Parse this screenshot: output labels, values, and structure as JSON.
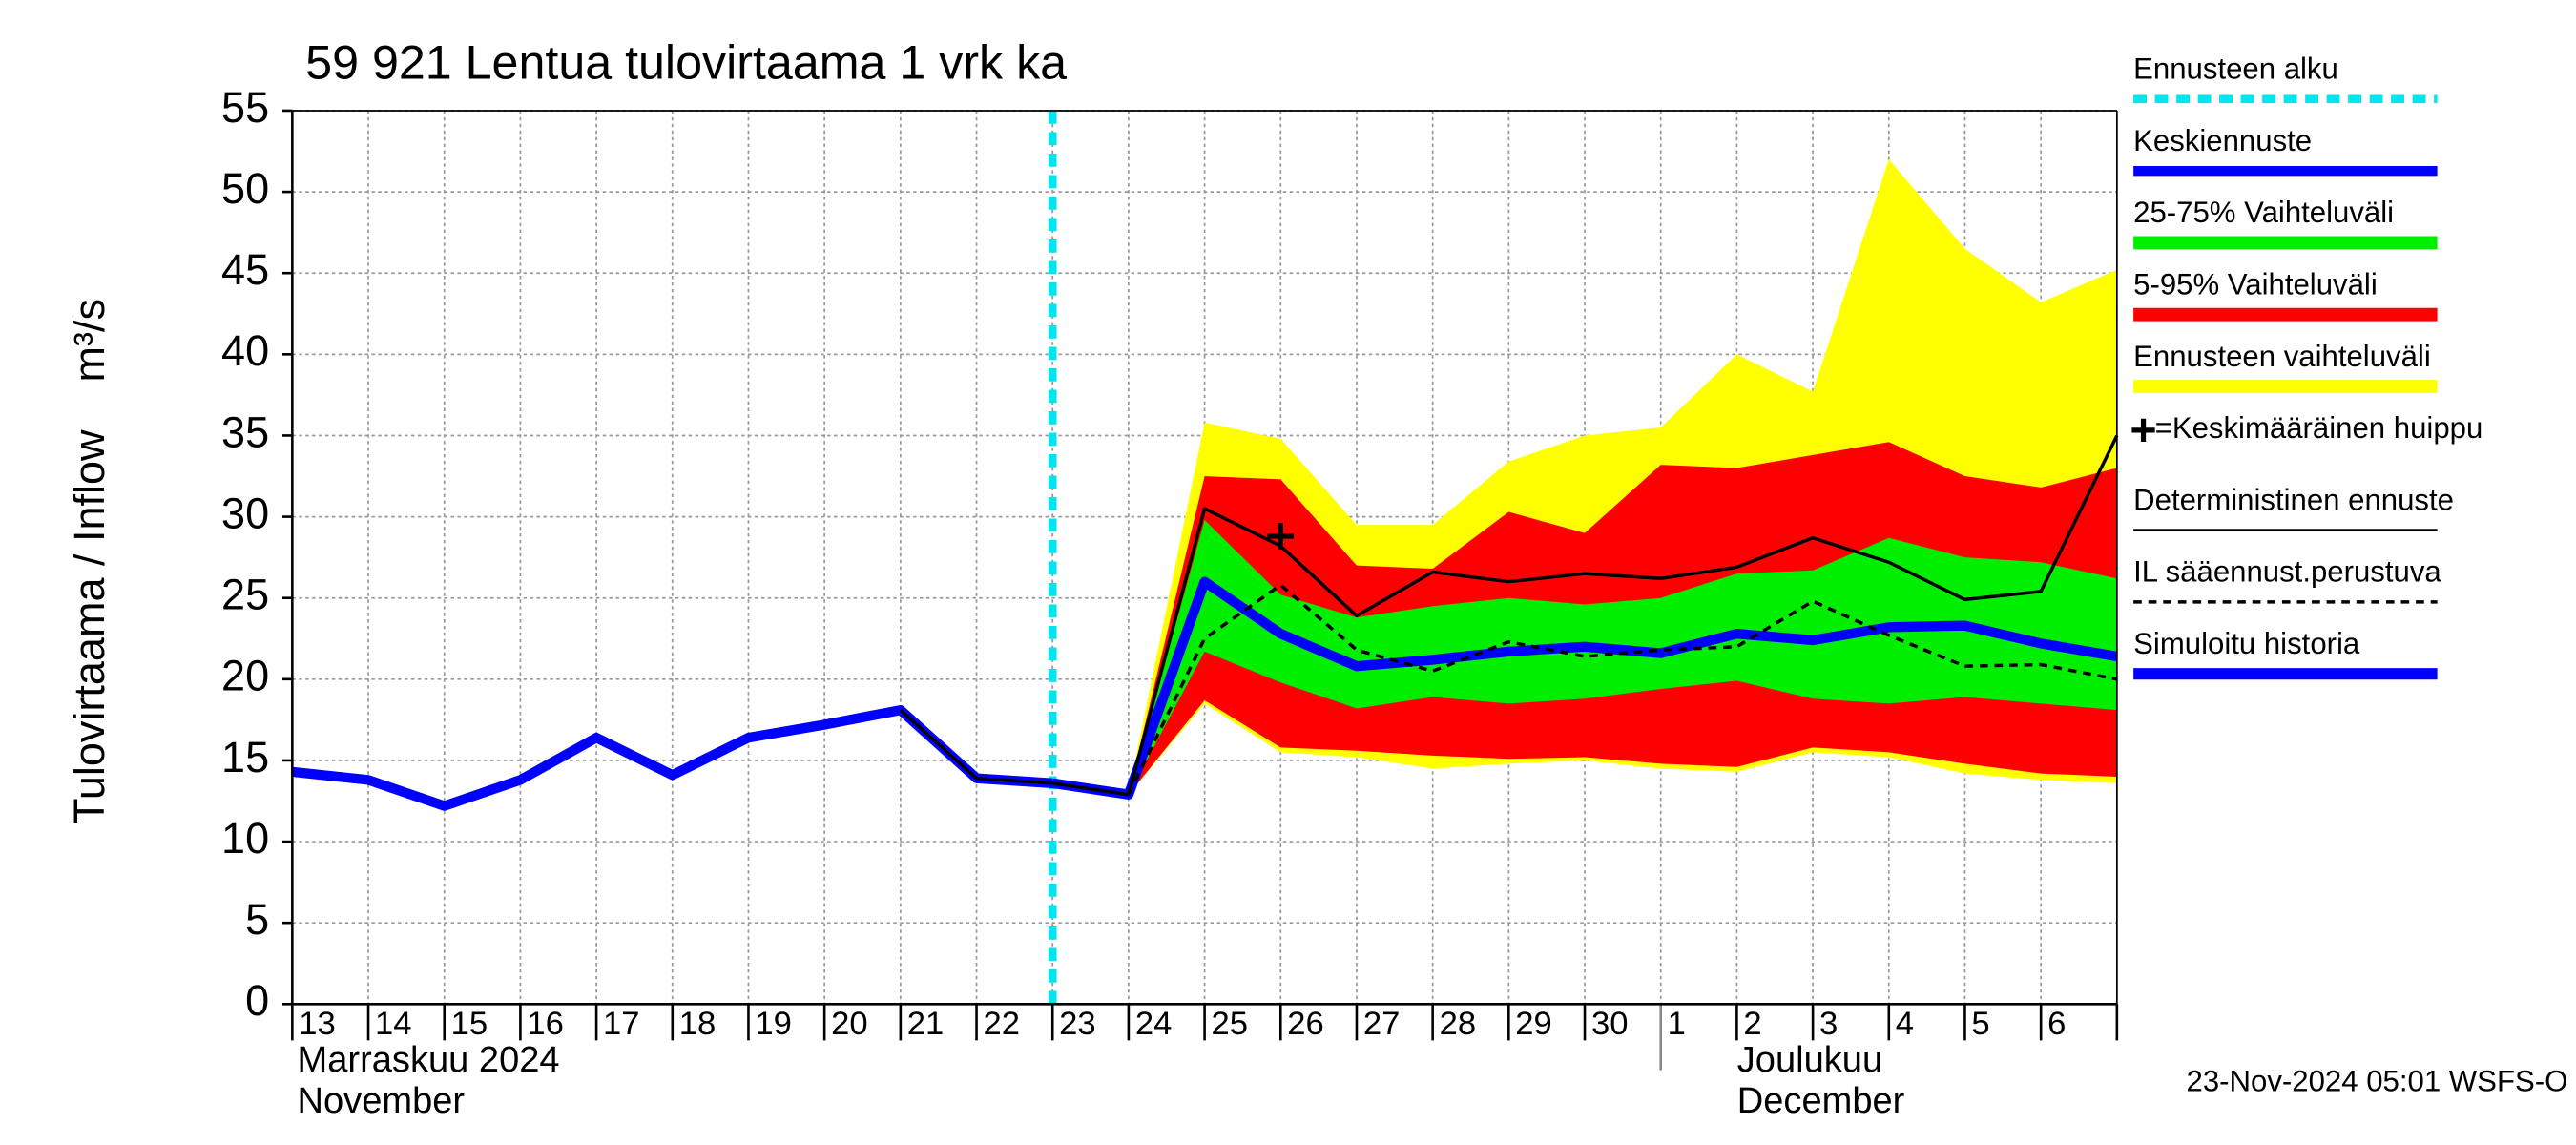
{
  "chart_data": {
    "type": "line",
    "title": "59 921 Lentua tulovirtaama 1 vrk ka",
    "y_label": "Tulovirtaama / Inflow    m³/s",
    "month_labels": [
      "Marraskuu 2024",
      "November",
      "Joulukuu",
      "December"
    ],
    "footer": "23-Nov-2024 05:01 WSFS-O",
    "categories": [
      "13",
      "14",
      "15",
      "16",
      "17",
      "18",
      "19",
      "20",
      "21",
      "22",
      "23",
      "24",
      "25",
      "26",
      "27",
      "28",
      "29",
      "30",
      "1",
      "2",
      "3",
      "4",
      "5",
      "6",
      null
    ],
    "ylim": [
      0,
      55
    ],
    "yticks": [
      0,
      5,
      10,
      15,
      20,
      25,
      30,
      35,
      40,
      45,
      50,
      55
    ],
    "grid": true,
    "forecast_start": {
      "x": "23",
      "label": "Ennusteen alku",
      "color": "#00e5ee"
    },
    "bands": [
      {
        "name": "Ennusteen vaihteluväli",
        "color": "#ffff00",
        "low": [
          null,
          null,
          null,
          null,
          null,
          null,
          null,
          null,
          null,
          13.9,
          13.6,
          12.9,
          18.5,
          15.5,
          15.2,
          14.5,
          14.8,
          15,
          14.5,
          14.3,
          15.5,
          15.2,
          14.2,
          13.8,
          13.6
        ],
        "high": [
          null,
          null,
          null,
          null,
          null,
          null,
          null,
          null,
          null,
          13.9,
          13.9,
          13,
          35.8,
          34.8,
          29.5,
          29.5,
          33.4,
          35,
          35.5,
          40,
          37.7,
          52,
          46.5,
          43.2,
          45.2
        ]
      },
      {
        "name": "5-95% Vaihteluväli",
        "color": "#ff0000",
        "low": [
          null,
          null,
          null,
          null,
          null,
          null,
          null,
          null,
          null,
          13.9,
          13.6,
          12.9,
          18.7,
          15.8,
          15.6,
          15.3,
          15.1,
          15.2,
          14.8,
          14.6,
          15.8,
          15.5,
          14.8,
          14.2,
          14
        ],
        "high": [
          null,
          null,
          null,
          null,
          null,
          null,
          null,
          null,
          null,
          13.9,
          13.7,
          13,
          32.5,
          32.3,
          27,
          26.8,
          30.3,
          29,
          33.2,
          33,
          33.8,
          34.6,
          32.5,
          31.8,
          33
        ]
      },
      {
        "name": "25-75% Vaihteluväli",
        "color": "#00ee00",
        "low": [
          null,
          null,
          null,
          null,
          null,
          null,
          null,
          null,
          null,
          null,
          null,
          12.9,
          21.7,
          19.8,
          18.2,
          18.9,
          18.5,
          18.8,
          19.4,
          19.9,
          18.8,
          18.5,
          18.9,
          18.5,
          18.1
        ],
        "high": [
          null,
          null,
          null,
          null,
          null,
          null,
          null,
          null,
          null,
          null,
          null,
          12.9,
          29.8,
          25.2,
          23.8,
          24.5,
          25,
          24.6,
          25,
          26.5,
          26.7,
          28.7,
          27.5,
          27.2,
          26.2
        ]
      }
    ],
    "series": [
      {
        "name": "Simuloitu historia",
        "color": "#0000ff",
        "width": 6,
        "dash": "none",
        "values": [
          14.3,
          13.8,
          12.2,
          13.8,
          16.4,
          14.1,
          16.4,
          17.2,
          18.1,
          13.9,
          13.6,
          null,
          null,
          null,
          null,
          null,
          null,
          null,
          null,
          null,
          null,
          null,
          null,
          null,
          null
        ]
      },
      {
        "name": "Keskiennuste",
        "color": "#0000ff",
        "width": 6,
        "dash": "none",
        "values": [
          null,
          null,
          null,
          null,
          null,
          null,
          null,
          null,
          null,
          null,
          13.6,
          12.9,
          26,
          22.8,
          20.8,
          21.2,
          21.7,
          22,
          21.6,
          22.8,
          22.4,
          23.2,
          23.3,
          22.2,
          21.4
        ]
      },
      {
        "name": "Deterministinen ennuste",
        "color": "#000000",
        "width": 2,
        "dash": "none",
        "values": [
          null,
          null,
          null,
          null,
          null,
          null,
          null,
          null,
          18.1,
          13.9,
          13.6,
          12.9,
          30.5,
          28.2,
          23.9,
          26.6,
          26,
          26.5,
          26.2,
          26.9,
          28.7,
          27.2,
          24.9,
          25.4,
          35
        ]
      },
      {
        "name": "IL sääennust.perustuva",
        "color": "#000000",
        "width": 2,
        "dash": "5,4",
        "values": [
          null,
          null,
          null,
          null,
          null,
          null,
          null,
          null,
          null,
          null,
          null,
          12.9,
          22.5,
          25.8,
          21.8,
          20.5,
          22.3,
          21.4,
          21.8,
          22,
          24.8,
          22.7,
          20.8,
          20.9,
          20
        ]
      }
    ],
    "peak": {
      "x": "26",
      "value": 28.8,
      "label": "=Keskimääräinen huippu"
    }
  }
}
